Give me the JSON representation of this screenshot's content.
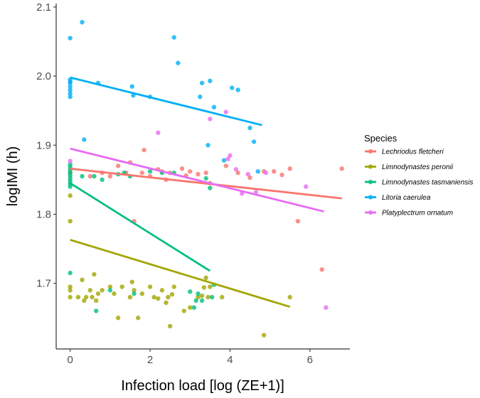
{
  "chart_data": {
    "type": "scatter",
    "xlabel": "Infection load [log (ZE+1)]",
    "ylabel": "logIMI (h)",
    "xlim": [
      -0.35,
      7.0
    ],
    "ylim": [
      1.605,
      2.105
    ],
    "xticks": [
      0,
      2,
      4,
      6
    ],
    "yticks": [
      1.7,
      1.8,
      1.9,
      2.0,
      2.1
    ],
    "ytick_labels": [
      "1.7",
      "1.8",
      "1.9",
      "2.0",
      "2.1"
    ],
    "grid": false,
    "legend_title": "Species",
    "legend_position": "right",
    "series": [
      {
        "name": "Lechriodus fletcheri",
        "color": "#F8766D",
        "trend": {
          "x": [
            0,
            6.8
          ],
          "y": [
            1.866,
            1.823
          ]
        },
        "points": [
          [
            0.0,
            1.86
          ],
          [
            0.5,
            1.855
          ],
          [
            0.8,
            1.86
          ],
          [
            1.0,
            1.855
          ],
          [
            1.2,
            1.87
          ],
          [
            1.4,
            1.86
          ],
          [
            1.5,
            1.875
          ],
          [
            1.8,
            1.86
          ],
          [
            1.85,
            1.893
          ],
          [
            2.0,
            1.855
          ],
          [
            2.2,
            1.865
          ],
          [
            2.3,
            1.862
          ],
          [
            2.4,
            1.85
          ],
          [
            2.5,
            1.86
          ],
          [
            2.8,
            1.866
          ],
          [
            2.9,
            1.856
          ],
          [
            3.0,
            1.862
          ],
          [
            3.2,
            1.858
          ],
          [
            3.4,
            1.86
          ],
          [
            3.5,
            1.845
          ],
          [
            3.9,
            1.87
          ],
          [
            4.2,
            1.86
          ],
          [
            4.5,
            1.853
          ],
          [
            4.85,
            1.862
          ],
          [
            5.1,
            1.862
          ],
          [
            5.3,
            1.857
          ],
          [
            5.5,
            1.866
          ],
          [
            5.7,
            1.79
          ],
          [
            6.3,
            1.72
          ],
          [
            6.8,
            1.866
          ],
          [
            1.6,
            1.79
          ]
        ]
      },
      {
        "name": "Limnodynastes peronii",
        "color": "#A3A500",
        "trend": {
          "x": [
            0,
            5.5
          ],
          "y": [
            1.763,
            1.666
          ]
        },
        "points": [
          [
            0.0,
            1.827
          ],
          [
            0.0,
            1.79
          ],
          [
            0.0,
            1.695
          ],
          [
            0.0,
            1.69
          ],
          [
            0.0,
            1.68
          ],
          [
            0.2,
            1.68
          ],
          [
            0.3,
            1.705
          ],
          [
            0.35,
            1.675
          ],
          [
            0.4,
            1.68
          ],
          [
            0.5,
            1.69
          ],
          [
            0.55,
            1.68
          ],
          [
            0.6,
            1.713
          ],
          [
            0.65,
            1.675
          ],
          [
            0.7,
            1.685
          ],
          [
            0.8,
            1.69
          ],
          [
            1.0,
            1.695
          ],
          [
            1.1,
            1.685
          ],
          [
            1.2,
            1.65
          ],
          [
            1.3,
            1.695
          ],
          [
            1.5,
            1.68
          ],
          [
            1.55,
            1.702
          ],
          [
            1.6,
            1.69
          ],
          [
            1.7,
            1.65
          ],
          [
            1.8,
            1.685
          ],
          [
            2.0,
            1.695
          ],
          [
            2.1,
            1.68
          ],
          [
            2.2,
            1.678
          ],
          [
            2.3,
            1.69
          ],
          [
            2.4,
            1.672
          ],
          [
            2.45,
            1.68
          ],
          [
            2.5,
            1.638
          ],
          [
            2.55,
            1.684
          ],
          [
            2.6,
            1.695
          ],
          [
            2.85,
            1.66
          ],
          [
            3.0,
            1.665
          ],
          [
            3.2,
            1.68
          ],
          [
            3.3,
            1.682
          ],
          [
            3.35,
            1.694
          ],
          [
            3.4,
            1.708
          ],
          [
            3.45,
            1.68
          ],
          [
            3.5,
            1.695
          ],
          [
            3.8,
            1.68
          ],
          [
            4.85,
            1.625
          ],
          [
            5.5,
            1.68
          ]
        ]
      },
      {
        "name": "Limnodynastes tasmaniensis",
        "color": "#00BF7D",
        "trend": {
          "x": [
            0,
            3.5
          ],
          "y": [
            1.845,
            1.718
          ]
        },
        "points": [
          [
            0.0,
            1.872
          ],
          [
            0.0,
            1.868
          ],
          [
            0.0,
            1.864
          ],
          [
            0.0,
            1.86
          ],
          [
            0.0,
            1.856
          ],
          [
            0.0,
            1.852
          ],
          [
            0.0,
            1.848
          ],
          [
            0.0,
            1.844
          ],
          [
            0.0,
            1.84
          ],
          [
            0.0,
            1.715
          ],
          [
            0.3,
            1.855
          ],
          [
            0.6,
            1.855
          ],
          [
            0.65,
            1.66
          ],
          [
            0.8,
            1.85
          ],
          [
            1.0,
            1.69
          ],
          [
            1.2,
            1.858
          ],
          [
            1.35,
            1.86
          ],
          [
            1.5,
            1.855
          ],
          [
            1.6,
            1.685
          ],
          [
            2.0,
            1.862
          ],
          [
            2.3,
            1.86
          ],
          [
            2.6,
            1.86
          ],
          [
            3.0,
            1.688
          ],
          [
            3.1,
            1.665
          ],
          [
            3.15,
            1.675
          ],
          [
            3.2,
            1.685
          ],
          [
            3.3,
            1.675
          ],
          [
            3.4,
            1.852
          ],
          [
            3.5,
            1.838
          ],
          [
            3.55,
            1.68
          ],
          [
            3.6,
            1.698
          ]
        ]
      },
      {
        "name": "Litoria caerulea",
        "color": "#00B0F6",
        "trend": {
          "x": [
            0,
            4.8
          ],
          "y": [
            1.998,
            1.929
          ]
        },
        "points": [
          [
            0.0,
            2.055
          ],
          [
            0.0,
            1.995
          ],
          [
            0.0,
            1.992
          ],
          [
            0.0,
            1.99
          ],
          [
            0.0,
            1.985
          ],
          [
            0.0,
            1.98
          ],
          [
            0.0,
            1.975
          ],
          [
            0.0,
            1.97
          ],
          [
            0.3,
            2.078
          ],
          [
            0.35,
            1.908
          ],
          [
            0.7,
            1.99
          ],
          [
            1.55,
            1.985
          ],
          [
            1.58,
            1.972
          ],
          [
            2.0,
            1.97
          ],
          [
            2.6,
            2.056
          ],
          [
            2.7,
            2.019
          ],
          [
            3.25,
            1.97
          ],
          [
            3.3,
            1.99
          ],
          [
            3.5,
            1.993
          ],
          [
            3.6,
            1.955
          ],
          [
            3.45,
            1.9
          ],
          [
            3.85,
            1.878
          ],
          [
            4.05,
            1.983
          ],
          [
            4.2,
            1.98
          ],
          [
            4.5,
            1.925
          ],
          [
            4.6,
            1.905
          ],
          [
            4.7,
            1.862
          ]
        ]
      },
      {
        "name": "Platyplectrum ornatum",
        "color": "#E76BF3",
        "trend": {
          "x": [
            0,
            6.35
          ],
          "y": [
            1.895,
            1.804
          ]
        },
        "points": [
          [
            0.0,
            1.877
          ],
          [
            2.2,
            1.918
          ],
          [
            3.5,
            1.938
          ],
          [
            3.9,
            1.948
          ],
          [
            4.0,
            1.885
          ],
          [
            3.95,
            1.88
          ],
          [
            4.15,
            1.865
          ],
          [
            4.3,
            1.83
          ],
          [
            4.45,
            1.858
          ],
          [
            4.65,
            1.832
          ],
          [
            4.9,
            1.86
          ],
          [
            5.9,
            1.84
          ],
          [
            6.4,
            1.665
          ]
        ]
      }
    ]
  }
}
